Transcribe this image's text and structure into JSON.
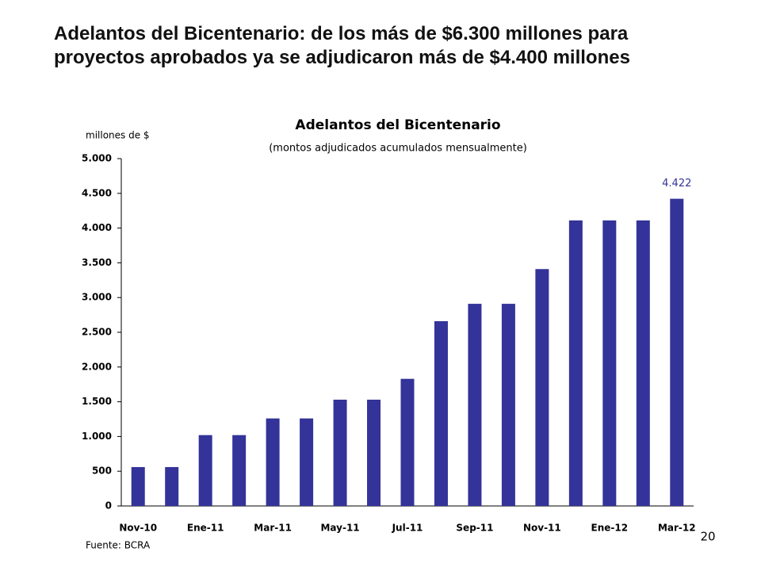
{
  "heading": "Adelantos del Bicentenario: de los más de $6.300 millones para proyectos aprobados ya se adjudicaron más de $4.400 millones",
  "page_number": 20,
  "chart_data": {
    "type": "bar",
    "title": "Adelantos del Bicentenario",
    "subtitle": "(montos adjudicados acumulados mensualmente)",
    "y_label": "millones de $",
    "source": "Fuente: BCRA",
    "categories": [
      "Nov-10",
      null,
      "Ene-11",
      null,
      "Mar-11",
      null,
      "May-11",
      null,
      "Jul-11",
      null,
      "Sep-11",
      null,
      "Nov-11",
      null,
      "Ene-12",
      null,
      "Mar-12"
    ],
    "values": [
      560,
      560,
      1020,
      1020,
      1260,
      1260,
      1530,
      1530,
      1830,
      2660,
      2910,
      2910,
      3410,
      4110,
      4110,
      4110,
      4422
    ],
    "value_labels": [
      null,
      null,
      null,
      null,
      null,
      null,
      null,
      null,
      null,
      null,
      null,
      null,
      null,
      null,
      null,
      null,
      "4.422"
    ],
    "color": "#333399",
    "ylim": [
      0,
      5000
    ],
    "yticks": [
      0,
      500,
      {
        "value": 1000,
        "label": "1.000"
      },
      {
        "value": 1500,
        "label": "1.500"
      },
      {
        "value": 2000,
        "label": "2.000"
      },
      {
        "value": 2500,
        "label": "2.500"
      },
      {
        "value": 3000,
        "label": "3.000"
      },
      {
        "value": 3500,
        "label": "3.500"
      },
      {
        "value": 4000,
        "label": "4.000"
      },
      {
        "value": 4500,
        "label": "4.500"
      },
      {
        "value": 5000,
        "label": "5.000"
      }
    ],
    "grid": false
  }
}
